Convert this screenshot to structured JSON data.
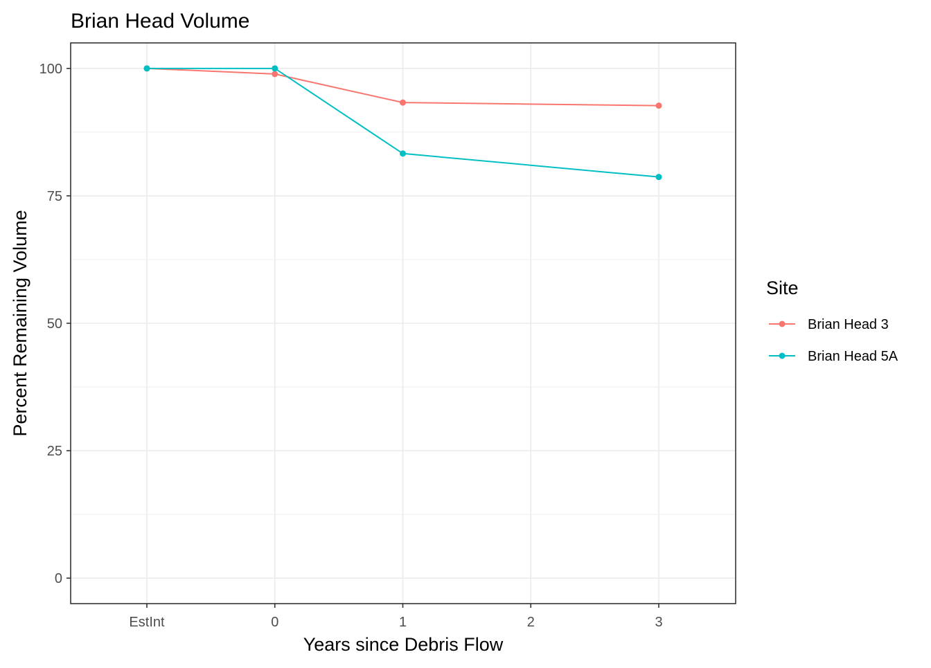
{
  "chart_data": {
    "type": "line",
    "title": "Brian Head Volume",
    "xlabel": "Years since Debris Flow",
    "ylabel": "Percent Remaining Volume",
    "categories": [
      "EstInt",
      "0",
      "1",
      "2",
      "3"
    ],
    "ylim": [
      -5,
      105
    ],
    "yticks": [
      0,
      25,
      50,
      75,
      100
    ],
    "grid": true,
    "legend": {
      "title": "Site",
      "position": "right"
    },
    "series": [
      {
        "name": "Brian Head 3",
        "color": "#F8766D",
        "points": [
          {
            "x": "EstInt",
            "y": 100
          },
          {
            "x": "0",
            "y": 98.9
          },
          {
            "x": "1",
            "y": 93.3
          },
          {
            "x": "3",
            "y": 92.7
          }
        ]
      },
      {
        "name": "Brian Head 5A",
        "color": "#00BFC4",
        "points": [
          {
            "x": "EstInt",
            "y": 100
          },
          {
            "x": "0",
            "y": 100
          },
          {
            "x": "1",
            "y": 83.3
          },
          {
            "x": "3",
            "y": 78.7
          }
        ]
      }
    ]
  }
}
